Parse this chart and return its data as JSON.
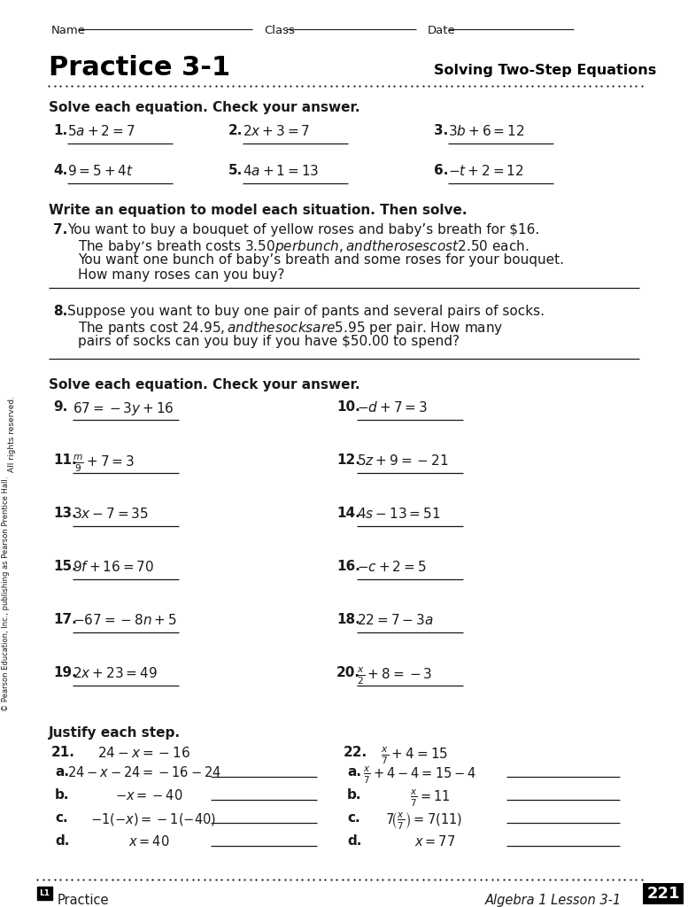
{
  "bg_color": "#ffffff",
  "title": "Practice 3-1",
  "subtitle": "Solving Two-Step Equations",
  "page_number": "221"
}
